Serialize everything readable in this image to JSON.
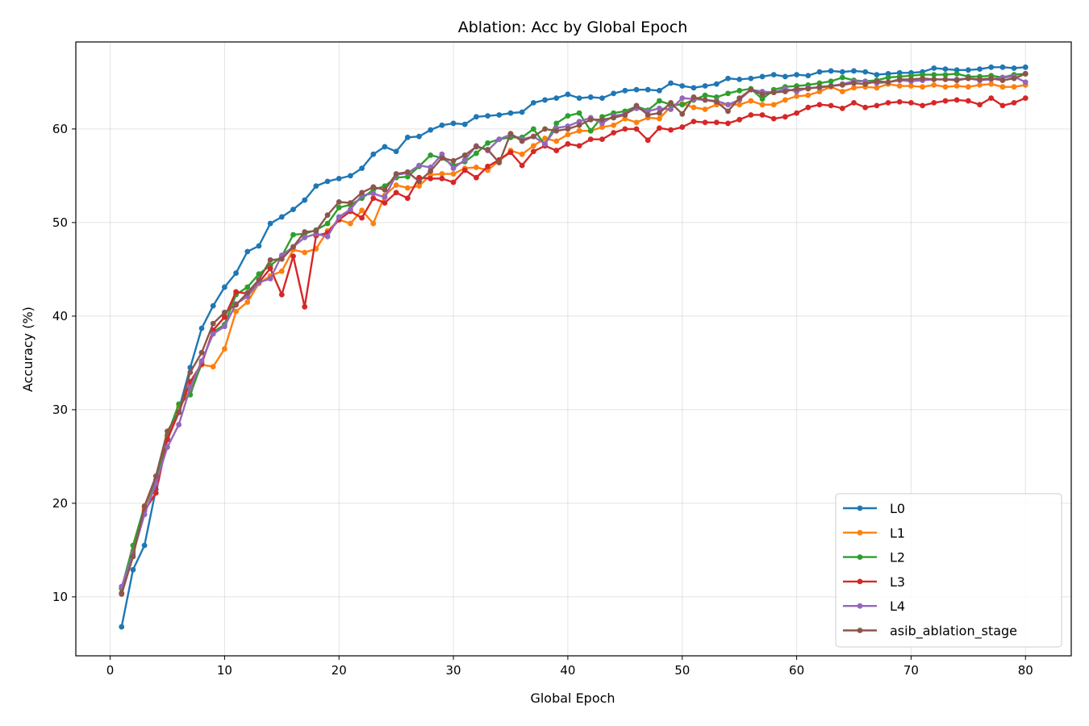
{
  "chart_data": {
    "type": "line",
    "title": "Ablation: Acc by Global Epoch",
    "xlabel": "Global Epoch",
    "ylabel": "Accuracy (%)",
    "xlim": [
      -3,
      84
    ],
    "ylim": [
      3.7,
      69.3
    ],
    "xticks": [
      0,
      10,
      20,
      30,
      40,
      50,
      60,
      70,
      80
    ],
    "yticks": [
      10,
      20,
      30,
      40,
      50,
      60
    ],
    "grid": true,
    "legend_position": "bottom-right",
    "x": [
      1,
      2,
      3,
      4,
      5,
      6,
      7,
      8,
      9,
      10,
      11,
      12,
      13,
      14,
      15,
      16,
      17,
      18,
      19,
      20,
      21,
      22,
      23,
      24,
      25,
      26,
      27,
      28,
      29,
      30,
      31,
      32,
      33,
      34,
      35,
      36,
      37,
      38,
      39,
      40,
      41,
      42,
      43,
      44,
      45,
      46,
      47,
      48,
      49,
      50,
      51,
      52,
      53,
      54,
      55,
      56,
      57,
      58,
      59,
      60,
      61,
      62,
      63,
      64,
      65,
      66,
      67,
      68,
      69,
      70,
      71,
      72,
      73,
      74,
      75,
      76,
      77,
      78,
      79,
      80
    ],
    "series": [
      {
        "name": "L0",
        "color": "#1f77b4",
        "values": [
          6.8,
          12.9,
          15.5,
          21.5,
          26.9,
          30.0,
          34.5,
          38.7,
          41.1,
          43.1,
          44.6,
          46.9,
          47.5,
          49.9,
          50.6,
          51.4,
          52.4,
          53.9,
          54.4,
          54.7,
          55.0,
          55.8,
          57.3,
          58.1,
          57.6,
          59.1,
          59.2,
          59.9,
          60.4,
          60.6,
          60.5,
          61.3,
          61.4,
          61.5,
          61.7,
          61.8,
          62.8,
          63.1,
          63.3,
          63.7,
          63.3,
          63.4,
          63.3,
          63.8,
          64.1,
          64.2,
          64.2,
          64.1,
          64.9,
          64.6,
          64.4,
          64.6,
          64.8,
          65.4,
          65.3,
          65.4,
          65.6,
          65.8,
          65.6,
          65.8,
          65.7,
          66.1,
          66.2,
          66.1,
          66.2,
          66.1,
          65.8,
          65.9,
          66.0,
          66.0,
          66.1,
          66.5,
          66.4,
          66.3,
          66.3,
          66.4,
          66.6,
          66.6,
          66.5,
          66.6
        ]
      },
      {
        "name": "L1",
        "color": "#ff7f0e",
        "values": [
          10.9,
          14.9,
          19.5,
          22.4,
          27.2,
          30.2,
          32.1,
          34.8,
          34.6,
          36.5,
          40.5,
          41.5,
          43.5,
          44.3,
          44.8,
          47.1,
          46.8,
          47.2,
          49.1,
          50.3,
          49.9,
          51.3,
          49.9,
          52.9,
          54.0,
          53.7,
          53.9,
          55.1,
          55.2,
          55.2,
          55.8,
          55.9,
          55.6,
          56.6,
          57.7,
          57.3,
          58.2,
          59.0,
          58.7,
          59.4,
          59.8,
          59.8,
          60.2,
          60.4,
          61.1,
          60.7,
          61.2,
          61.1,
          62.4,
          62.7,
          62.3,
          62.1,
          62.6,
          62.6,
          62.6,
          63.0,
          62.6,
          62.6,
          63.1,
          63.5,
          63.6,
          64.0,
          64.5,
          64.0,
          64.4,
          64.5,
          64.4,
          64.8,
          64.6,
          64.6,
          64.5,
          64.7,
          64.5,
          64.6,
          64.5,
          64.7,
          64.8,
          64.5,
          64.5,
          64.7
        ]
      },
      {
        "name": "L2",
        "color": "#2ca02c",
        "values": [
          10.9,
          15.5,
          19.7,
          22.5,
          27.3,
          30.6,
          31.6,
          35.0,
          38.3,
          39.1,
          42.3,
          43.1,
          44.5,
          45.4,
          46.4,
          48.7,
          48.8,
          49.2,
          49.9,
          51.6,
          51.9,
          52.6,
          53.5,
          53.9,
          54.8,
          54.9,
          56.0,
          57.2,
          56.9,
          56.1,
          56.5,
          57.4,
          58.5,
          58.9,
          59.1,
          59.1,
          60.0,
          58.3,
          60.6,
          61.4,
          61.7,
          59.8,
          61.3,
          61.7,
          61.9,
          62.4,
          62.0,
          63.0,
          62.6,
          62.6,
          63.1,
          63.6,
          63.4,
          63.8,
          64.1,
          64.3,
          63.2,
          64.2,
          64.5,
          64.6,
          64.7,
          64.9,
          65.1,
          65.5,
          65.2,
          65.1,
          65.2,
          65.5,
          65.6,
          65.7,
          65.8,
          65.8,
          65.8,
          65.9,
          65.6,
          65.6,
          65.7,
          65.5,
          65.8,
          65.9
        ]
      },
      {
        "name": "L3",
        "color": "#d62728",
        "values": [
          10.4,
          14.6,
          19.2,
          21.1,
          26.8,
          29.7,
          33.0,
          34.9,
          38.5,
          39.9,
          42.6,
          42.4,
          43.6,
          45.1,
          42.3,
          46.4,
          41.0,
          48.6,
          48.9,
          50.3,
          51.2,
          50.5,
          52.6,
          52.1,
          53.2,
          52.6,
          54.8,
          54.7,
          54.7,
          54.3,
          55.6,
          54.8,
          56.0,
          56.7,
          57.5,
          56.1,
          57.6,
          58.2,
          57.7,
          58.4,
          58.2,
          58.9,
          58.9,
          59.6,
          60.0,
          60.0,
          58.8,
          60.1,
          59.9,
          60.2,
          60.8,
          60.7,
          60.7,
          60.6,
          61.0,
          61.5,
          61.5,
          61.1,
          61.3,
          61.7,
          62.3,
          62.6,
          62.5,
          62.2,
          62.8,
          62.3,
          62.5,
          62.8,
          62.9,
          62.8,
          62.5,
          62.8,
          63.0,
          63.1,
          63.0,
          62.6,
          63.3,
          62.5,
          62.8,
          63.3
        ]
      },
      {
        "name": "L4",
        "color": "#9467bd",
        "values": [
          11.1,
          14.6,
          18.8,
          22.1,
          26.0,
          28.4,
          32.4,
          35.2,
          38.1,
          38.9,
          41.3,
          42.1,
          43.6,
          44.0,
          46.5,
          47.4,
          48.4,
          48.8,
          48.5,
          50.6,
          51.4,
          52.9,
          53.1,
          52.7,
          55.1,
          55.3,
          56.1,
          55.9,
          57.3,
          55.8,
          56.7,
          58.2,
          57.7,
          58.9,
          59.4,
          58.9,
          59.2,
          58.4,
          60.1,
          60.3,
          60.8,
          61.2,
          60.6,
          61.4,
          61.6,
          62.2,
          61.9,
          62.2,
          62.1,
          63.3,
          63.2,
          63.1,
          63.0,
          62.6,
          63.1,
          64.2,
          64.0,
          63.9,
          64.3,
          64.0,
          64.4,
          64.4,
          64.6,
          64.8,
          65.1,
          65.1,
          64.9,
          65.0,
          65.2,
          65.1,
          65.2,
          65.3,
          65.3,
          65.3,
          65.4,
          65.2,
          65.3,
          65.5,
          65.6,
          65.0
        ]
      },
      {
        "name": "asib_ablation_stage",
        "color": "#8c564b",
        "values": [
          10.3,
          14.3,
          19.7,
          22.9,
          27.7,
          29.7,
          34.0,
          36.1,
          39.2,
          40.4,
          41.2,
          42.5,
          43.9,
          46.0,
          46.1,
          47.4,
          49.0,
          49.1,
          50.8,
          52.2,
          52.1,
          53.2,
          53.8,
          53.5,
          55.2,
          55.4,
          54.4,
          55.5,
          56.9,
          56.6,
          57.2,
          58.1,
          57.8,
          56.4,
          59.5,
          58.7,
          59.2,
          60.0,
          59.8,
          60.0,
          60.4,
          61.0,
          61.0,
          61.2,
          61.5,
          62.5,
          61.5,
          61.7,
          62.8,
          61.6,
          63.4,
          63.1,
          62.9,
          61.9,
          63.3,
          64.2,
          63.7,
          63.9,
          64.0,
          64.3,
          64.3,
          64.5,
          64.6,
          64.7,
          64.9,
          64.8,
          65.1,
          65.0,
          65.3,
          65.3,
          65.4,
          65.3,
          65.3,
          65.2,
          65.4,
          65.3,
          65.4,
          65.2,
          65.4,
          65.9
        ]
      }
    ]
  }
}
